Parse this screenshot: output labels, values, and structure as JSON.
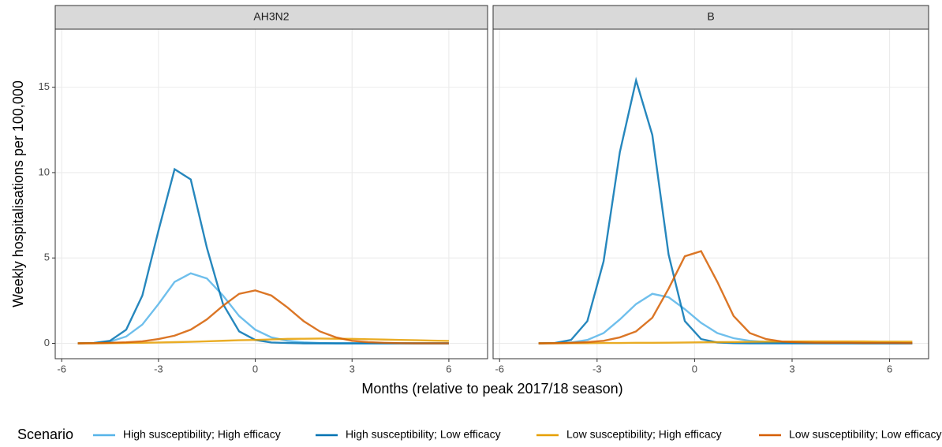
{
  "chart_data": {
    "type": "line",
    "x_label": "Months (relative to peak 2017/18 season)",
    "y_label": "Weekly hospitalisations per 100,000",
    "legend_title": "Scenario",
    "legend_position": "bottom",
    "grid": true,
    "xlim": [
      -6.2,
      7.2
    ],
    "ylim": [
      -0.9,
      18.4
    ],
    "xticks": [
      -6,
      -3,
      0,
      3,
      6
    ],
    "yticks": [
      0,
      5,
      10,
      15
    ],
    "series": [
      {
        "name": "High susceptibility; High efficacy",
        "color": "#56B4E9"
      },
      {
        "name": "High susceptibility; Low efficacy",
        "color": "#0072B2"
      },
      {
        "name": "Low susceptibility; High efficacy",
        "color": "#E69F00"
      },
      {
        "name": "Low susceptibility; Low efficacy",
        "color": "#D55E00"
      }
    ],
    "panels": [
      {
        "title": "AH3N2",
        "x": [
          -5.5,
          -5,
          -4.5,
          -4,
          -3.5,
          -3,
          -2.5,
          -2,
          -1.5,
          -1,
          -0.5,
          0,
          0.5,
          1,
          1.5,
          2,
          2.5,
          3,
          3.5,
          4,
          4.5,
          5,
          5.5,
          6
        ],
        "series": [
          {
            "values": [
              0,
              0.02,
              0.1,
              0.4,
              1.1,
              2.3,
              3.6,
              4.1,
              3.8,
              2.8,
              1.6,
              0.8,
              0.35,
              0.15,
              0.06,
              0.02,
              0,
              0,
              0,
              0,
              0,
              0,
              0,
              0
            ]
          },
          {
            "values": [
              0,
              0.02,
              0.15,
              0.8,
              2.8,
              6.6,
              10.2,
              9.6,
              5.6,
              2.3,
              0.7,
              0.2,
              0.05,
              0.02,
              0,
              0,
              0,
              0,
              0,
              0,
              0,
              0,
              0,
              0
            ]
          },
          {
            "values": [
              0,
              0,
              0.01,
              0.02,
              0.03,
              0.05,
              0.07,
              0.09,
              0.12,
              0.15,
              0.18,
              0.2,
              0.23,
              0.26,
              0.27,
              0.28,
              0.27,
              0.26,
              0.24,
              0.22,
              0.2,
              0.18,
              0.16,
              0.14
            ]
          },
          {
            "values": [
              0,
              0.01,
              0.03,
              0.06,
              0.12,
              0.25,
              0.45,
              0.8,
              1.4,
              2.2,
              2.9,
              3.1,
              2.8,
              2.1,
              1.3,
              0.7,
              0.35,
              0.15,
              0.07,
              0.03,
              0.01,
              0,
              0,
              0
            ]
          }
        ]
      },
      {
        "title": "B",
        "x": [
          -4.8,
          -4.3,
          -3.8,
          -3.3,
          -2.8,
          -2.3,
          -1.8,
          -1.3,
          -0.8,
          -0.3,
          0.2,
          0.7,
          1.2,
          1.7,
          2.2,
          2.7,
          3.2,
          3.7,
          4.2,
          4.7,
          5.2,
          5.7,
          6.2,
          6.7
        ],
        "series": [
          {
            "values": [
              0,
              0.01,
              0.05,
              0.2,
              0.6,
              1.4,
              2.3,
              2.9,
              2.7,
              2.0,
              1.2,
              0.6,
              0.3,
              0.15,
              0.08,
              0.05,
              0.03,
              0.02,
              0.01,
              0.01,
              0,
              0,
              0,
              0
            ]
          },
          {
            "values": [
              0,
              0.02,
              0.2,
              1.3,
              4.8,
              11.2,
              15.4,
              12.2,
              5.2,
              1.3,
              0.25,
              0.05,
              0.01,
              0,
              0,
              0,
              0,
              0,
              0,
              0,
              0,
              0,
              0,
              0
            ]
          },
          {
            "values": [
              0,
              0,
              0.01,
              0.01,
              0.02,
              0.02,
              0.03,
              0.03,
              0.04,
              0.05,
              0.06,
              0.07,
              0.08,
              0.09,
              0.1,
              0.1,
              0.11,
              0.11,
              0.11,
              0.11,
              0.11,
              0.1,
              0.1,
              0.1
            ]
          },
          {
            "values": [
              0,
              0.01,
              0.03,
              0.07,
              0.15,
              0.35,
              0.7,
              1.5,
              3.2,
              5.1,
              5.4,
              3.6,
              1.6,
              0.6,
              0.25,
              0.1,
              0.06,
              0.04,
              0.03,
              0.03,
              0.02,
              0.02,
              0.02,
              0.01
            ]
          }
        ]
      }
    ]
  }
}
